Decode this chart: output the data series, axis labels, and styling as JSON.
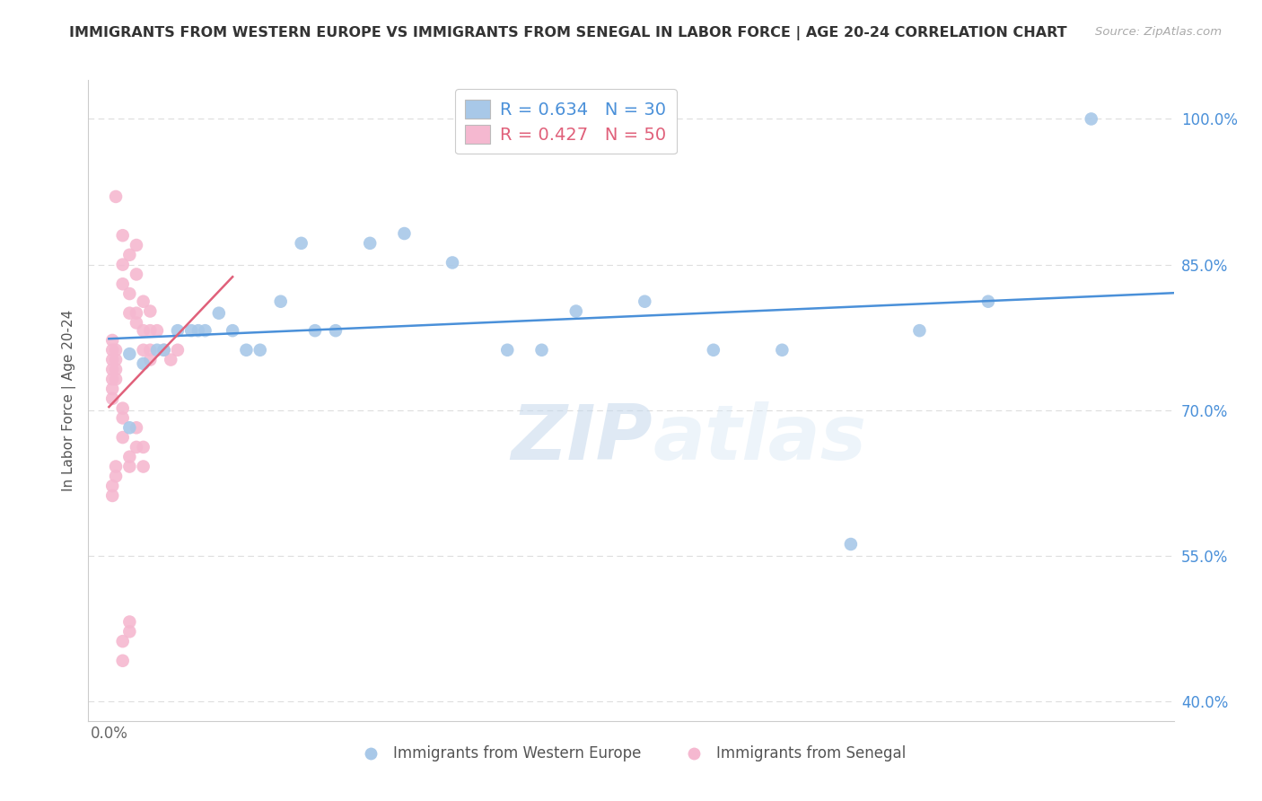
{
  "title": "IMMIGRANTS FROM WESTERN EUROPE VS IMMIGRANTS FROM SENEGAL IN LABOR FORCE | AGE 20-24 CORRELATION CHART",
  "source": "Source: ZipAtlas.com",
  "ylabel": "In Labor Force | Age 20-24",
  "xlim": [
    -0.003,
    0.155
  ],
  "ylim": [
    0.38,
    1.04
  ],
  "yticks": [
    0.4,
    0.55,
    0.7,
    0.85,
    1.0
  ],
  "ytick_labels": [
    "40.0%",
    "55.0%",
    "70.0%",
    "85.0%",
    "100.0%"
  ],
  "xtick_val": 0.0,
  "xtick_label": "0.0%",
  "background_color": "#ffffff",
  "grid_color": "#dddddd",
  "watermark_zip": "ZIP",
  "watermark_atlas": "atlas",
  "legend_R_blue": "0.634",
  "legend_N_blue": "30",
  "legend_R_pink": "0.427",
  "legend_N_pink": "50",
  "blue_color": "#a8c8e8",
  "pink_color": "#f5b8d0",
  "blue_line_color": "#4a90d9",
  "pink_line_color": "#e0607a",
  "blue_scatter_x": [
    0.003,
    0.005,
    0.007,
    0.008,
    0.01,
    0.012,
    0.013,
    0.014,
    0.016,
    0.018,
    0.02,
    0.022,
    0.025,
    0.028,
    0.03,
    0.033,
    0.038,
    0.043,
    0.05,
    0.058,
    0.063,
    0.068,
    0.078,
    0.088,
    0.098,
    0.108,
    0.118,
    0.128,
    0.143,
    0.003
  ],
  "blue_scatter_y": [
    0.758,
    0.748,
    0.762,
    0.762,
    0.782,
    0.782,
    0.782,
    0.782,
    0.8,
    0.782,
    0.762,
    0.762,
    0.812,
    0.872,
    0.782,
    0.782,
    0.872,
    0.882,
    0.852,
    0.762,
    0.762,
    0.802,
    0.812,
    0.762,
    0.762,
    0.562,
    0.782,
    0.812,
    1.0,
    0.682
  ],
  "pink_scatter_x": [
    0.001,
    0.002,
    0.002,
    0.002,
    0.003,
    0.003,
    0.003,
    0.004,
    0.004,
    0.004,
    0.004,
    0.005,
    0.005,
    0.005,
    0.006,
    0.006,
    0.006,
    0.006,
    0.001,
    0.001,
    0.001,
    0.001,
    0.0005,
    0.0005,
    0.0005,
    0.0005,
    0.0005,
    0.0005,
    0.0005,
    0.002,
    0.002,
    0.002,
    0.003,
    0.003,
    0.004,
    0.004,
    0.005,
    0.005,
    0.001,
    0.001,
    0.0005,
    0.0005,
    0.003,
    0.003,
    0.002,
    0.007,
    0.008,
    0.009,
    0.01,
    0.002
  ],
  "pink_scatter_y": [
    0.92,
    0.88,
    0.85,
    0.83,
    0.86,
    0.82,
    0.8,
    0.87,
    0.84,
    0.8,
    0.79,
    0.812,
    0.782,
    0.762,
    0.802,
    0.782,
    0.762,
    0.752,
    0.762,
    0.752,
    0.742,
    0.732,
    0.772,
    0.762,
    0.752,
    0.742,
    0.732,
    0.722,
    0.712,
    0.702,
    0.692,
    0.672,
    0.652,
    0.642,
    0.682,
    0.662,
    0.662,
    0.642,
    0.642,
    0.632,
    0.622,
    0.612,
    0.482,
    0.472,
    0.462,
    0.782,
    0.762,
    0.752,
    0.762,
    0.442
  ]
}
